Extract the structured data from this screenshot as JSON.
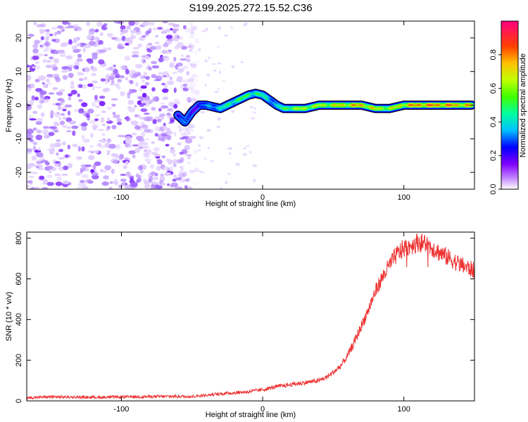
{
  "title": "S199.2025.272.15.52.C36",
  "chart_data": [
    {
      "type": "heatmap",
      "xlabel": "Height of straight line (km)",
      "ylabel": "Frequency (Hz)",
      "xlim": [
        -167,
        150
      ],
      "ylim": [
        -25,
        25
      ],
      "xticks": [
        -100,
        0,
        100
      ],
      "yticks": [
        -20,
        -10,
        0,
        10,
        20
      ],
      "colorbar": {
        "label": "Normalized spectral amplitude",
        "range": [
          0,
          1
        ],
        "ticks": [
          0,
          0.2,
          0.4,
          0.6,
          0.8
        ],
        "tick_labels": [
          "0.0",
          "0.2",
          "0.4",
          "0.6",
          "0.8"
        ],
        "colors": [
          "#ffffff",
          "#8000ff",
          "#0000ff",
          "#00c0ff",
          "#00ff80",
          "#80ff00",
          "#ffff00",
          "#ff8000",
          "#ff0000",
          "#ff0080"
        ]
      },
      "noise_region_x": [
        -167,
        -45
      ],
      "ridge": {
        "x": [
          -60,
          -55,
          -50,
          -45,
          -40,
          -35,
          -30,
          -25,
          -20,
          -15,
          -10,
          -5,
          0,
          5,
          10,
          15,
          20,
          30,
          40,
          50,
          60,
          70,
          80,
          90,
          100,
          110,
          120,
          130,
          140,
          148
        ],
        "freq": [
          -3,
          -5,
          -2,
          0,
          0,
          -0.5,
          -1,
          0,
          1,
          2,
          3,
          3.5,
          3,
          1.5,
          0,
          -1,
          -1,
          -1,
          0,
          0,
          0,
          0,
          -1,
          -1,
          0,
          0,
          0,
          0,
          0,
          0
        ],
        "amplitude": [
          0.3,
          0.4,
          0.25,
          0.3,
          0.4,
          0.45,
          0.5,
          0.55,
          0.6,
          0.62,
          0.6,
          0.6,
          0.55,
          0.5,
          0.45,
          0.6,
          0.7,
          0.75,
          0.75,
          0.8,
          0.85,
          0.9,
          0.8,
          0.75,
          0.85,
          0.95,
          0.95,
          0.95,
          0.9,
          0.85
        ]
      }
    },
    {
      "type": "line",
      "xlabel": "Height of straight line (km)",
      "ylabel": "SNR (10 * v/v)",
      "xlim": [
        -167,
        150
      ],
      "ylim": [
        0,
        830
      ],
      "xticks": [
        -100,
        0,
        100
      ],
      "yticks": [
        0,
        200,
        400,
        600,
        800
      ],
      "color": "#ee3333",
      "series": [
        {
          "x": [
            -167,
            -150,
            -130,
            -110,
            -90,
            -70,
            -50,
            -40,
            -30,
            -20,
            -10,
            0,
            10,
            20,
            30,
            40,
            45,
            50,
            55,
            60,
            65,
            70,
            75,
            80,
            85,
            90,
            95,
            100,
            105,
            110,
            115,
            120,
            125,
            130,
            135,
            140,
            145,
            150
          ],
          "values": [
            15,
            20,
            18,
            18,
            20,
            22,
            22,
            28,
            35,
            40,
            45,
            55,
            70,
            80,
            90,
            100,
            115,
            140,
            170,
            220,
            290,
            370,
            450,
            540,
            610,
            670,
            720,
            750,
            765,
            780,
            775,
            755,
            730,
            710,
            690,
            670,
            655,
            640
          ]
        }
      ]
    }
  ]
}
